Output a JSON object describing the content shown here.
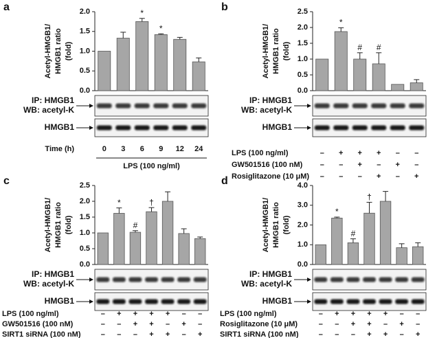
{
  "chart_data": [
    {
      "type": "bar",
      "panel": "a",
      "ylabel": [
        "Acetyl-HMGB1/",
        "HMGB1 ratio",
        "(fold)"
      ],
      "color": "#a6a6a6",
      "categories": [
        "0",
        "3",
        "6",
        "9",
        "12",
        "24"
      ],
      "xlabel": "Time (h)",
      "group_label": "LPS (100 ng/ml)",
      "values": [
        1.0,
        1.33,
        1.75,
        1.42,
        1.3,
        0.73
      ],
      "errors": [
        0,
        0.15,
        0.08,
        0.02,
        0.05,
        0.1
      ],
      "annotations": [
        null,
        null,
        "*",
        "*",
        null,
        null
      ],
      "ylim": [
        0,
        2
      ],
      "yticks": [
        {
          "value": 0,
          "label": "0.0"
        },
        0.5,
        {
          "value": 1,
          "label": "1.0"
        },
        1.5,
        {
          "value": 2,
          "label": "2.0"
        }
      ],
      "blot_labels": [
        "IP: HMGB1",
        "WB: acetyl-K",
        "HMGB1"
      ]
    },
    {
      "type": "bar",
      "panel": "b",
      "ylabel": [
        "Acetyl-HMGB1/",
        "HMGB1 ratio",
        "(fold)"
      ],
      "color": "#a6a6a6",
      "values": [
        1.0,
        1.87,
        1.0,
        0.85,
        0.2,
        0.25
      ],
      "errors": [
        0,
        0.12,
        0.2,
        0.35,
        0,
        0.1
      ],
      "annotations": [
        null,
        "*",
        "#",
        "#",
        null,
        null
      ],
      "ylim": [
        0,
        2.5
      ],
      "yticks": [
        {
          "value": 0,
          "label": "0.0"
        },
        0.5,
        {
          "value": 1,
          "label": "1.0"
        },
        1.5,
        {
          "value": 2,
          "label": "2.0"
        },
        2.5
      ],
      "blot_labels": [
        "IP: HMGB1",
        "WB: acetyl-K",
        "HMGB1"
      ],
      "treatments": [
        {
          "label": "LPS (100 ng/ml)",
          "signs": [
            "–",
            "+",
            "+",
            "+",
            "–",
            "–"
          ]
        },
        {
          "label": "GW501516 (100 nM)",
          "signs": [
            "–",
            "–",
            "+",
            "–",
            "+",
            "–"
          ]
        },
        {
          "label": "Rosiglitazone (10 μM)",
          "signs": [
            "–",
            "–",
            "–",
            "+",
            "–",
            "+"
          ]
        }
      ]
    },
    {
      "type": "bar",
      "panel": "c",
      "ylabel": [
        "Acetyl-HMGB1/",
        "HMGB1 ratio",
        "(fold)"
      ],
      "color": "#a6a6a6",
      "values": [
        1.0,
        1.62,
        1.02,
        1.67,
        2.0,
        0.98,
        0.82
      ],
      "errors": [
        0,
        0.17,
        0.05,
        0.13,
        0.3,
        0.15,
        0.05
      ],
      "annotations": [
        null,
        "*",
        "#",
        "†",
        null,
        null,
        null
      ],
      "ylim": [
        0,
        2.5
      ],
      "yticks": [
        {
          "value": 0,
          "label": "0.0"
        },
        0.5,
        {
          "value": 1,
          "label": "1.0"
        },
        1.5,
        {
          "value": 2,
          "label": "2.0"
        },
        2.5
      ],
      "blot_labels": [
        "IP: HMGB1",
        "WB: acetyl-K",
        "HMGB1"
      ],
      "treatments": [
        {
          "label": "LPS (100 ng/ml)",
          "signs": [
            "–",
            "+",
            "+",
            "+",
            "+",
            "–",
            "–"
          ]
        },
        {
          "label": "GW501516 (100 nM)",
          "signs": [
            "–",
            "–",
            "+",
            "+",
            "–",
            "+",
            "–"
          ]
        },
        {
          "label": "SIRT1 siRNA (100 nM)",
          "signs": [
            "–",
            "–",
            "–",
            "+",
            "+",
            "–",
            "+"
          ]
        }
      ]
    },
    {
      "type": "bar",
      "panel": "d",
      "ylabel": [
        "Acetyl-HMGB1/",
        "HMGB1 ratio",
        "(fold)"
      ],
      "color": "#a6a6a6",
      "values": [
        1.0,
        2.35,
        1.1,
        2.6,
        3.2,
        0.85,
        0.9
      ],
      "errors": [
        0,
        0.05,
        0.2,
        0.55,
        0.5,
        0.2,
        0.2
      ],
      "annotations": [
        null,
        "*",
        "#",
        "†",
        null,
        null,
        null
      ],
      "ylim": [
        0,
        4
      ],
      "yticks": [
        {
          "value": 0,
          "label": "0.0"
        },
        {
          "value": 1,
          "label": "1.0"
        },
        {
          "value": 2,
          "label": "2.0"
        },
        {
          "value": 3,
          "label": "3.0"
        },
        {
          "value": 4,
          "label": "4.0"
        }
      ],
      "blot_labels": [
        "IP: HMGB1",
        "WB: acetyl-K",
        "HMGB1"
      ],
      "treatments": [
        {
          "label": "LPS (100 ng/ml)",
          "signs": [
            "–",
            "+",
            "+",
            "+",
            "+",
            "–",
            "–"
          ]
        },
        {
          "label": "Rosiglitazone (10 μM)",
          "signs": [
            "–",
            "–",
            "+",
            "+",
            "–",
            "+",
            "–"
          ]
        },
        {
          "label": "SIRT1 siRNA (100 nM)",
          "signs": [
            "–",
            "–",
            "–",
            "+",
            "+",
            "–",
            "+"
          ]
        }
      ]
    }
  ]
}
